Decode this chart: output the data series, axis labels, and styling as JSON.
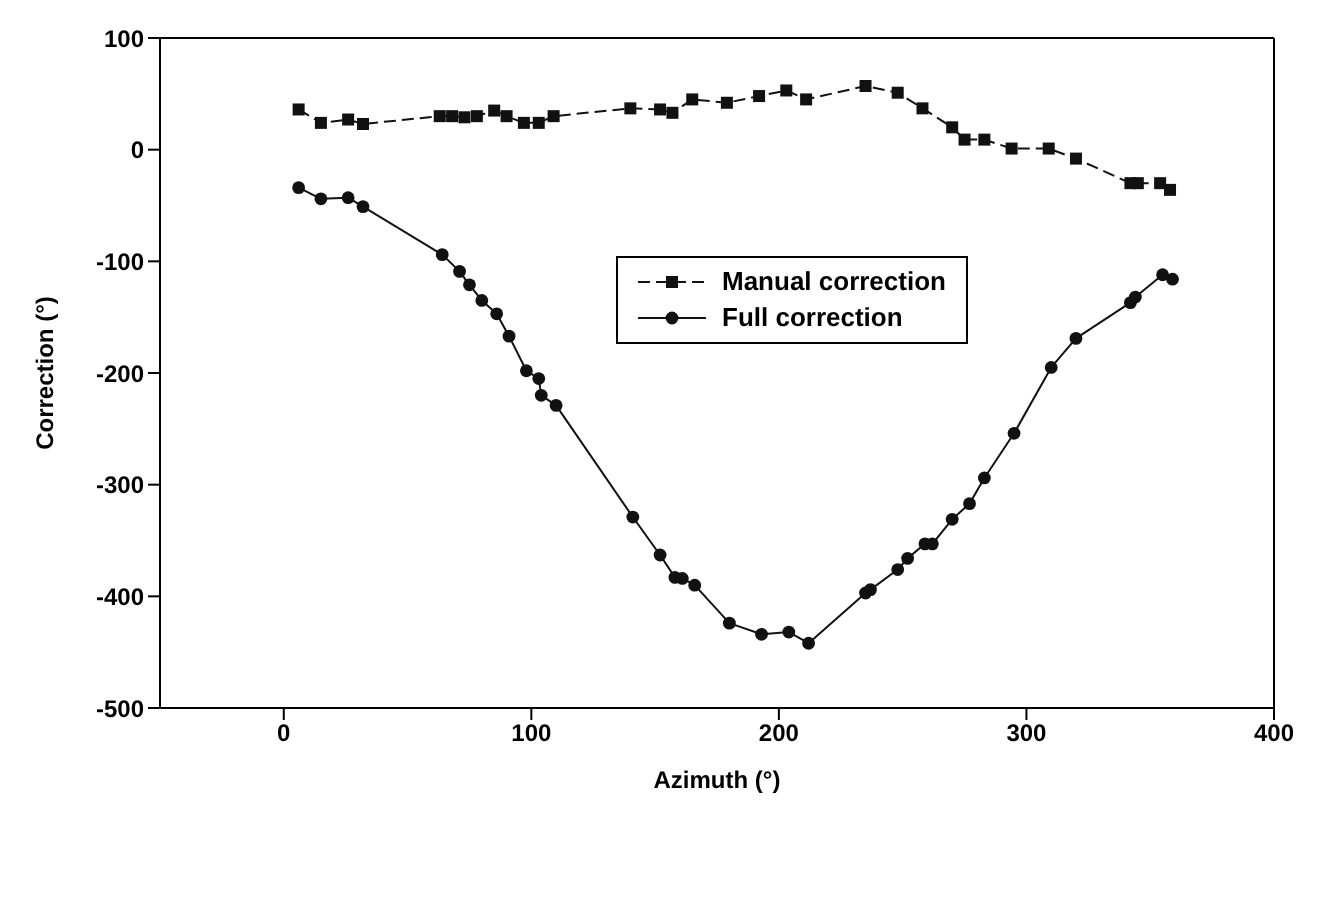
{
  "chart_data": {
    "type": "line",
    "xlabel": "Azimuth (°)",
    "ylabel": "Correction (°)",
    "xlim": [
      -50,
      400
    ],
    "xticks": [
      0,
      100,
      200,
      300,
      400
    ],
    "ylim": [
      -500,
      100
    ],
    "yticks": [
      -500,
      -400,
      -300,
      -200,
      -100,
      0,
      100
    ],
    "legend": "right",
    "series": [
      {
        "name": "Manual correction",
        "color": "#111111",
        "marker": "square",
        "line_style": "dashed",
        "x": [
          6,
          15,
          26,
          32,
          63,
          68,
          73,
          78,
          85,
          90,
          97,
          103,
          109,
          140,
          152,
          157,
          165,
          179,
          192,
          203,
          211,
          235,
          248,
          258,
          270,
          275,
          283,
          294,
          309,
          320,
          342,
          345,
          354,
          358
        ],
        "values": [
          36,
          24,
          27,
          23,
          30,
          30,
          29,
          30,
          35,
          30,
          24,
          24,
          30,
          37,
          36,
          33,
          45,
          42,
          48,
          53,
          45,
          57,
          51,
          37,
          20,
          9,
          9,
          1,
          1,
          -8,
          -30,
          -30,
          -30,
          -36
        ]
      },
      {
        "name": "Full correction",
        "color": "#111111",
        "marker": "circle",
        "line_style": "solid",
        "x": [
          6,
          15,
          26,
          32,
          64,
          71,
          75,
          80,
          86,
          91,
          98,
          103,
          104,
          110,
          141,
          152,
          158,
          161,
          166,
          180,
          193,
          204,
          212,
          235,
          237,
          248,
          252,
          259,
          262,
          270,
          277,
          283,
          295,
          310,
          320,
          342,
          344,
          355,
          359
        ],
        "values": [
          -34,
          -44,
          -43,
          -51,
          -94,
          -109,
          -121,
          -135,
          -147,
          -167,
          -198,
          -205,
          -220,
          -229,
          -329,
          -363,
          -383,
          -384,
          -390,
          -424,
          -434,
          -432,
          -442,
          -397,
          -394,
          -376,
          -366,
          -353,
          -353,
          -331,
          -317,
          -294,
          -254,
          -195,
          -169,
          -137,
          -132,
          -112,
          -116
        ]
      }
    ]
  }
}
